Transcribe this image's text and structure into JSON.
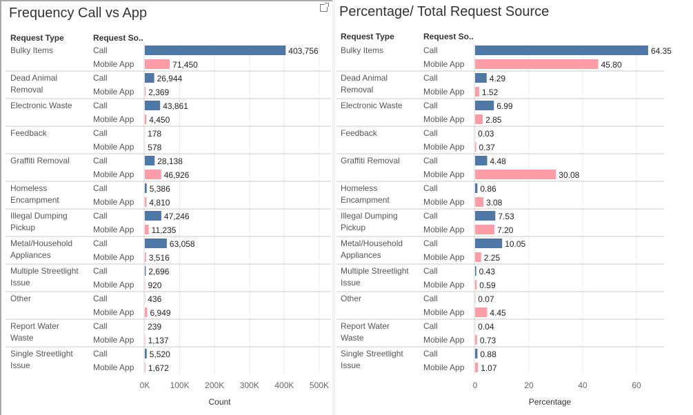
{
  "panels": [
    {
      "title": "Frequency Call vs App",
      "header_type": "Request Type",
      "header_source": "Request So..",
      "axis_title": "Count"
    },
    {
      "title": "Percentage/ Total Request Source",
      "header_type": "Request Type",
      "header_source": "Request So..",
      "axis_title": "Percentage"
    }
  ],
  "colors": {
    "call": "#4e79a7",
    "mobile_app": "#ff9da7",
    "row_divider": "#c8c8c8",
    "grid": "#ececec"
  },
  "chart_data": [
    {
      "type": "bar",
      "orientation": "horizontal",
      "title": "Frequency Call vs App",
      "xlabel": "Count",
      "xlim": [
        0,
        500000
      ],
      "ticks": [
        0,
        100000,
        200000,
        300000,
        400000,
        500000
      ],
      "tick_labels": [
        "0K",
        "100K",
        "200K",
        "300K",
        "400K",
        "500K"
      ],
      "grid": true,
      "categories": [
        [
          "Bulky Items"
        ],
        [
          "Dead Animal",
          "Removal"
        ],
        [
          "Electronic Waste"
        ],
        [
          "Feedback"
        ],
        [
          "Graffiti Removal"
        ],
        [
          "Homeless",
          "Encampment"
        ],
        [
          "Illegal Dumping",
          "Pickup"
        ],
        [
          "Metal/Household",
          "Appliances"
        ],
        [
          "Multiple Streetlight",
          "Issue"
        ],
        [
          "Other"
        ],
        [
          "Report Water",
          "Waste"
        ],
        [
          "Single Streetlight",
          "Issue"
        ]
      ],
      "series": [
        {
          "name": "Call",
          "values": [
            403756,
            26944,
            43861,
            178,
            28138,
            5386,
            47246,
            63058,
            2696,
            436,
            239,
            5520
          ],
          "labels": [
            "403,756",
            "26,944",
            "43,861",
            "178",
            "28,138",
            "5,386",
            "47,246",
            "63,058",
            "2,696",
            "436",
            "239",
            "5,520"
          ]
        },
        {
          "name": "Mobile App",
          "values": [
            71450,
            2369,
            4450,
            578,
            46926,
            4810,
            11235,
            3516,
            920,
            6949,
            1137,
            1672
          ],
          "labels": [
            "71,450",
            "2,369",
            "4,450",
            "578",
            "46,926",
            "4,810",
            "11,235",
            "3,516",
            "920",
            "6,949",
            "1,137",
            "1,672"
          ]
        }
      ]
    },
    {
      "type": "bar",
      "orientation": "horizontal",
      "title": "Percentage/ Total Request Source",
      "xlabel": "Percentage",
      "xlim": [
        0,
        70
      ],
      "ticks": [
        0,
        20,
        40,
        60
      ],
      "tick_labels": [
        "0",
        "20",
        "40",
        "60"
      ],
      "grid": true,
      "categories": [
        [
          "Bulky Items"
        ],
        [
          "Dead Animal",
          "Removal"
        ],
        [
          "Electronic Waste"
        ],
        [
          "Feedback"
        ],
        [
          "Graffiti Removal"
        ],
        [
          "Homeless",
          "Encampment"
        ],
        [
          "Illegal Dumping",
          "Pickup"
        ],
        [
          "Metal/Household",
          "Appliances"
        ],
        [
          "Multiple Streetlight",
          "Issue"
        ],
        [
          "Other"
        ],
        [
          "Report Water",
          "Waste"
        ],
        [
          "Single Streetlight",
          "Issue"
        ]
      ],
      "series": [
        {
          "name": "Call",
          "values": [
            64.35,
            4.29,
            6.99,
            0.03,
            4.48,
            0.86,
            7.53,
            10.05,
            0.43,
            0.07,
            0.04,
            0.88
          ],
          "labels": [
            "64.35",
            "4.29",
            "6.99",
            "0.03",
            "4.48",
            "0.86",
            "7.53",
            "10.05",
            "0.43",
            "0.07",
            "0.04",
            "0.88"
          ]
        },
        {
          "name": "Mobile App",
          "values": [
            45.8,
            1.52,
            2.85,
            0.37,
            30.08,
            3.08,
            7.2,
            2.25,
            0.59,
            4.45,
            0.73,
            1.07
          ],
          "labels": [
            "45.80",
            "1.52",
            "2.85",
            "0.37",
            "30.08",
            "3.08",
            "7.20",
            "2.25",
            "0.59",
            "4.45",
            "0.73",
            "1.07"
          ]
        }
      ]
    }
  ]
}
